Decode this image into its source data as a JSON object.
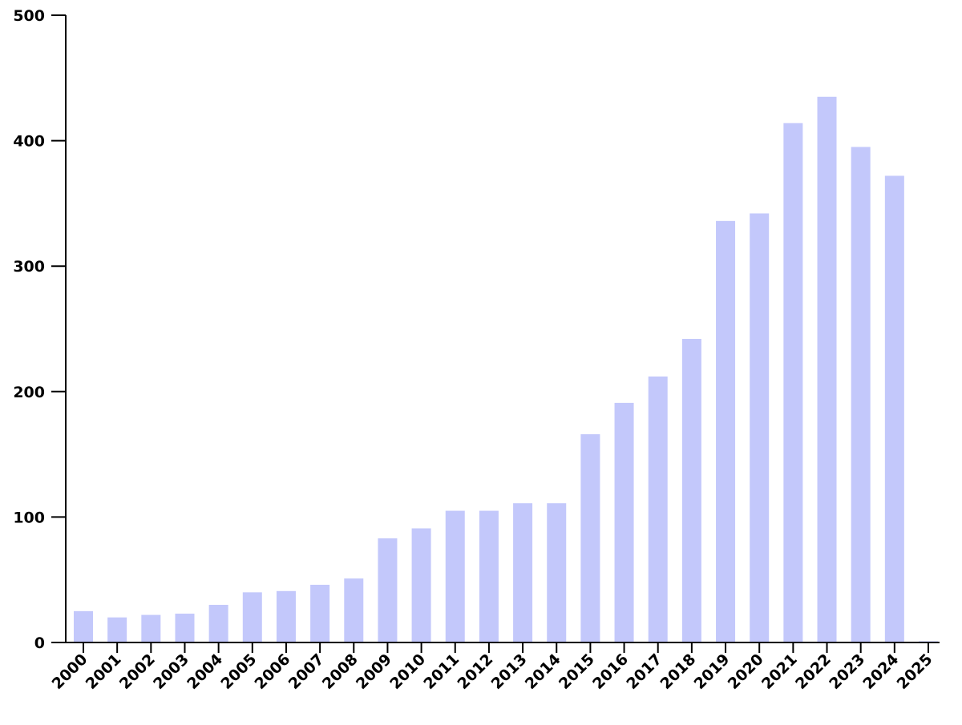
{
  "chart_data": {
    "type": "bar",
    "title": "",
    "xlabel": "",
    "ylabel": "",
    "categories": [
      "2000",
      "2001",
      "2002",
      "2003",
      "2004",
      "2005",
      "2006",
      "2007",
      "2008",
      "2009",
      "2010",
      "2011",
      "2012",
      "2013",
      "2014",
      "2015",
      "2016",
      "2017",
      "2018",
      "2019",
      "2020",
      "2021",
      "2022",
      "2023",
      "2024",
      "2025"
    ],
    "values": [
      25,
      20,
      22,
      23,
      30,
      40,
      41,
      46,
      51,
      83,
      91,
      105,
      105,
      111,
      111,
      166,
      191,
      212,
      242,
      336,
      342,
      414,
      435,
      395,
      372,
      1
    ],
    "ylim": [
      0,
      500
    ],
    "yticks": [
      0,
      100,
      200,
      300,
      400,
      500
    ],
    "grid": false,
    "legend": "none",
    "bar_color": "#c3c8fb",
    "axis_color": "#000000"
  }
}
